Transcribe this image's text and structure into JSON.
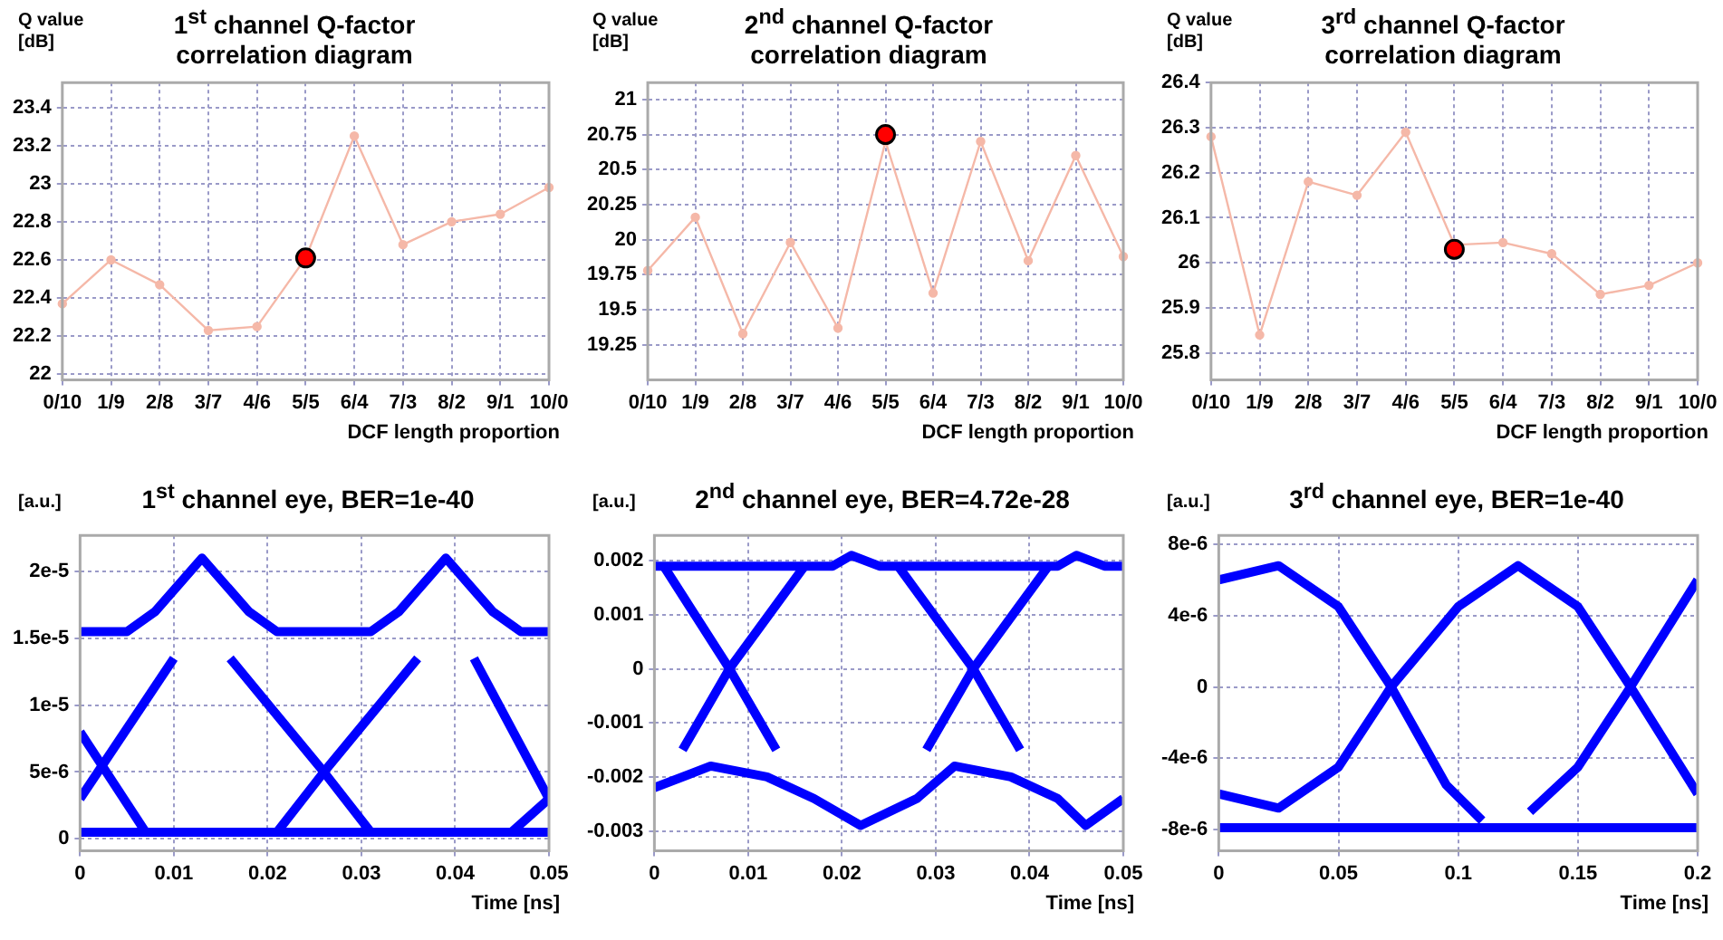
{
  "chart_data": [
    {
      "type": "line",
      "title": "1$^{st}$ channel Q-factor correlation diagram",
      "ylabel": "Q value [dB]",
      "xlabel": "DCF length proportion",
      "categories": [
        "0/10",
        "1/9",
        "2/8",
        "3/7",
        "4/6",
        "5/5",
        "6/4",
        "7/3",
        "8/2",
        "9/1",
        "10/0"
      ],
      "ylim": [
        21.97,
        23.53
      ],
      "yticks": [
        22,
        22.2,
        22.4,
        22.6,
        22.8,
        23,
        23.2,
        23.4
      ],
      "grid": true,
      "legend": false,
      "series": [
        {
          "type": "line",
          "color": "#f5b8a8",
          "marker": "circle",
          "values": [
            22.37,
            22.6,
            22.47,
            22.23,
            22.25,
            22.61,
            23.25,
            22.68,
            22.8,
            22.84,
            22.98
          ]
        },
        {
          "type": "scatter",
          "color": "#ff0000",
          "marker": "circle",
          "x": [
            "5/5"
          ],
          "values": [
            22.61
          ]
        }
      ]
    },
    {
      "type": "line",
      "title": "2$^{nd}$ channel Q-factor correlation diagram",
      "ylabel": "Q value [dB]",
      "xlabel": "DCF length proportion",
      "categories": [
        "0/10",
        "1/9",
        "2/8",
        "3/7",
        "4/6",
        "5/5",
        "6/4",
        "7/3",
        "8/2",
        "9/1",
        "10/0"
      ],
      "ylim": [
        19,
        21.12
      ],
      "yticks": [
        19.25,
        19.5,
        19.75,
        20,
        20.25,
        20.5,
        20.75,
        21
      ],
      "grid": true,
      "legend": false,
      "series": [
        {
          "type": "line",
          "color": "#f5b8a8",
          "marker": "circle",
          "values": [
            19.78,
            20.16,
            19.33,
            19.98,
            19.37,
            20.7,
            19.62,
            20.7,
            19.85,
            20.6,
            19.88
          ]
        },
        {
          "type": "scatter",
          "color": "#ff0000",
          "marker": "circle",
          "x": [
            "5/5"
          ],
          "values": [
            20.75
          ]
        }
      ]
    },
    {
      "type": "line",
      "title": "3$^{rd}$ channel Q-factor correlation diagram",
      "ylabel": "Q value [dB]",
      "xlabel": "DCF length proportion",
      "categories": [
        "0/10",
        "1/9",
        "2/8",
        "3/7",
        "4/6",
        "5/5",
        "6/4",
        "7/3",
        "8/2",
        "9/1",
        "10/0"
      ],
      "ylim": [
        25.74,
        26.4
      ],
      "yticks": [
        25.8,
        25.9,
        26,
        26.1,
        26.2,
        26.3,
        26.4
      ],
      "grid": true,
      "legend": false,
      "series": [
        {
          "type": "line",
          "color": "#f5b8a8",
          "marker": "circle",
          "values": [
            26.28,
            25.84,
            26.18,
            26.15,
            26.29,
            26.04,
            26.045,
            26.02,
            25.93,
            25.95,
            26.0
          ]
        },
        {
          "type": "scatter",
          "color": "#ff0000",
          "marker": "circle",
          "x": [
            "5/5"
          ],
          "values": [
            26.03
          ]
        }
      ]
    },
    {
      "type": "line",
      "title": "1$^{st}$ channel eye, BER=1e-40",
      "ylabel": "[a.u.]",
      "xlabel": "Time [ns]",
      "xlim": [
        0,
        0.05
      ],
      "xticks": [
        0,
        0.01,
        0.02,
        0.03,
        0.04,
        0.05
      ],
      "ylim": [
        -9e-07,
        2.27e-05
      ],
      "yticks": [
        {
          "value": 0,
          "label": "0"
        },
        {
          "value": 5e-06,
          "label": "5e-6"
        },
        {
          "value": 1e-05,
          "label": "1e-5"
        },
        {
          "value": 1.5e-05,
          "label": "1.5e-5"
        },
        {
          "value": 2e-05,
          "label": "2e-5"
        }
      ],
      "grid": true,
      "legend": false,
      "marker": "none",
      "series": [
        {
          "color": "#0000ff",
          "x": [
            0,
            0.005,
            0.008,
            0.013,
            0.018,
            0.021,
            0.031,
            0.034,
            0.039,
            0.044,
            0.047,
            0.05
          ],
          "values": [
            1.55e-05,
            1.55e-05,
            1.7e-05,
            2.1e-05,
            1.7e-05,
            1.55e-05,
            1.55e-05,
            1.7e-05,
            2.1e-05,
            1.7e-05,
            1.55e-05,
            1.55e-05
          ]
        },
        {
          "color": "#0000ff",
          "x": [
            0,
            0.05
          ],
          "values": [
            5e-07,
            5e-07
          ]
        },
        {
          "color": "#0000ff",
          "x": [
            0,
            0.007
          ],
          "values": [
            8e-06,
            5e-07
          ]
        },
        {
          "color": "#0000ff",
          "x": [
            0,
            0.01
          ],
          "values": [
            3e-06,
            1.35e-05
          ]
        },
        {
          "color": "#0000ff",
          "x": [
            0.016,
            0.026,
            0.031
          ],
          "values": [
            1.35e-05,
            5e-06,
            5e-07
          ]
        },
        {
          "color": "#0000ff",
          "x": [
            0.021,
            0.026,
            0.036
          ],
          "values": [
            5e-07,
            5e-06,
            1.35e-05
          ]
        },
        {
          "color": "#0000ff",
          "x": [
            0.042,
            0.05
          ],
          "values": [
            1.35e-05,
            3e-06
          ]
        },
        {
          "color": "#0000ff",
          "x": [
            0.046,
            0.05
          ],
          "values": [
            5e-07,
            3e-06
          ]
        }
      ]
    },
    {
      "type": "line",
      "title": "2$^{nd}$ channel eye, BER=4.72e-28",
      "ylabel": "[a.u.]",
      "xlabel": "Time [ns]",
      "xlim": [
        0,
        0.05
      ],
      "xticks": [
        0,
        0.01,
        0.02,
        0.03,
        0.04,
        0.05
      ],
      "ylim": [
        -0.00337,
        0.00247
      ],
      "yticks": [
        -0.003,
        -0.002,
        -0.001,
        0,
        0.001,
        0.002
      ],
      "grid": true,
      "legend": false,
      "marker": "none",
      "series": [
        {
          "color": "#0000ff",
          "x": [
            0,
            0.019,
            0.021,
            0.024,
            0.043,
            0.045,
            0.048,
            0.05
          ],
          "values": [
            0.0019,
            0.0019,
            0.0021,
            0.0019,
            0.0019,
            0.0021,
            0.0019,
            0.0019
          ]
        },
        {
          "color": "#0000ff",
          "x": [
            0,
            0.006,
            0.012,
            0.017,
            0.022,
            0.028,
            0.032,
            0.038,
            0.043,
            0.046,
            0.05
          ],
          "values": [
            -0.0022,
            -0.0018,
            -0.002,
            -0.0024,
            -0.0029,
            -0.0024,
            -0.0018,
            -0.002,
            -0.0024,
            -0.0029,
            -0.0024
          ]
        },
        {
          "color": "#0000ff",
          "x": [
            0.001,
            0.008,
            0.013
          ],
          "values": [
            0.0019,
            0,
            -0.0015
          ]
        },
        {
          "color": "#0000ff",
          "x": [
            0.003,
            0.008,
            0.016
          ],
          "values": [
            -0.0015,
            0,
            0.0019
          ]
        },
        {
          "color": "#0000ff",
          "x": [
            0.026,
            0.034,
            0.039
          ],
          "values": [
            0.0019,
            0,
            -0.0015
          ]
        },
        {
          "color": "#0000ff",
          "x": [
            0.029,
            0.034,
            0.042
          ],
          "values": [
            -0.0015,
            0,
            0.0019
          ]
        }
      ]
    },
    {
      "type": "line",
      "title": "3$^{rd}$ channel eye, BER=1e-40",
      "ylabel": "[a.u.]",
      "xlabel": "Time [ns]",
      "xlim": [
        0,
        0.2
      ],
      "xticks": [
        0,
        0.05,
        0.1,
        0.15,
        0.2
      ],
      "ylim": [
        -9.2e-06,
        8.5e-06
      ],
      "yticks": [
        {
          "value": -8e-06,
          "label": "-8e-6"
        },
        {
          "value": -4e-06,
          "label": "-4e-6"
        },
        {
          "value": 0,
          "label": "0"
        },
        {
          "value": 4e-06,
          "label": "4e-6"
        },
        {
          "value": 8e-06,
          "label": "8e-6"
        }
      ],
      "grid": true,
      "legend": false,
      "marker": "none",
      "series": [
        {
          "color": "#0000ff",
          "x": [
            0,
            0.025,
            0.05,
            0.072,
            0.095,
            0.11
          ],
          "values": [
            6e-06,
            6.8e-06,
            4.5e-06,
            0,
            -5.5e-06,
            -7.5e-06
          ]
        },
        {
          "color": "#0000ff",
          "x": [
            0,
            0.025,
            0.05,
            0.072,
            0.1,
            0.125,
            0.15,
            0.172,
            0.2
          ],
          "values": [
            -6e-06,
            -6.8e-06,
            -4.5e-06,
            0,
            4.5e-06,
            6.8e-06,
            4.5e-06,
            0,
            -6e-06
          ]
        },
        {
          "color": "#0000ff",
          "x": [
            0.13,
            0.15,
            0.172,
            0.2
          ],
          "values": [
            -7e-06,
            -4.5e-06,
            0,
            6e-06
          ]
        },
        {
          "color": "#0000ff",
          "x": [
            0,
            0.2
          ],
          "values": [
            -7.9e-06,
            -7.9e-06
          ]
        }
      ]
    }
  ]
}
